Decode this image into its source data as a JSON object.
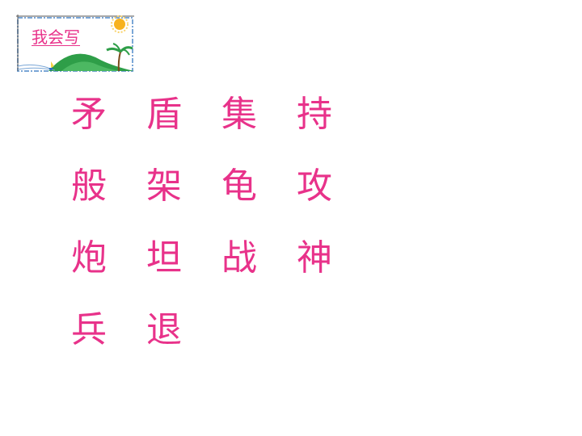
{
  "banner": {
    "label": "我会写",
    "icons": [
      "sun-icon",
      "hill-icon",
      "palm-tree-icon",
      "sailboat-icon"
    ]
  },
  "characters": [
    [
      "矛",
      "盾",
      "集",
      "持"
    ],
    [
      "般",
      "架",
      "龟",
      "攻"
    ],
    [
      "炮",
      "坦",
      "战",
      "神"
    ],
    [
      "兵",
      "退"
    ]
  ],
  "colors": {
    "text": "#e8328a",
    "frame": "#7aa6d6",
    "hill": "#2e9e48",
    "sun": "#f7b21e"
  }
}
